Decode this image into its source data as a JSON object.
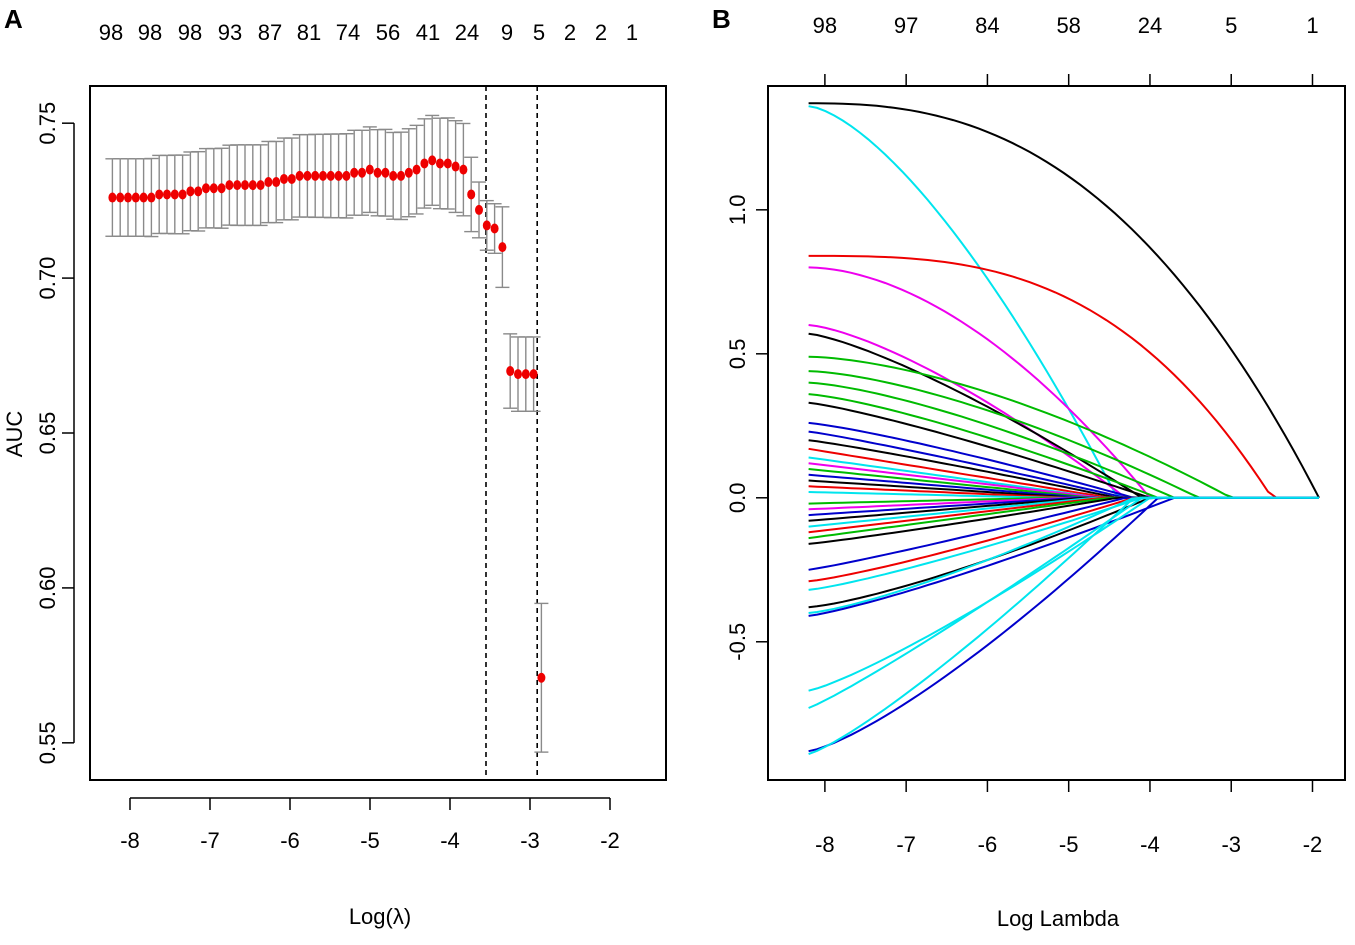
{
  "chart_data": [
    {
      "panel": "A",
      "type": "scatter",
      "title": "",
      "xlabel": "Log(λ)",
      "ylabel": "AUC",
      "xlim": [
        -8.5,
        -1.3
      ],
      "ylim": [
        0.538,
        0.762
      ],
      "x_ticks": [
        -8,
        -7,
        -6,
        -5,
        -4,
        -3,
        -2
      ],
      "x_tick_labels": [
        "-8",
        "-7",
        "-6",
        "-5",
        "-4",
        "-3",
        "-2"
      ],
      "y_ticks": [
        0.55,
        0.6,
        0.65,
        0.7,
        0.75
      ],
      "y_tick_labels": [
        "0.55",
        "0.60",
        "0.65",
        "0.70",
        "0.75"
      ],
      "top_axis_labels": [
        "98",
        "98",
        "98",
        "93",
        "87",
        "81",
        "74",
        "56",
        "41",
        "24",
        "9",
        "5",
        "2",
        "2",
        "1"
      ],
      "vlines": [
        -3.55,
        -2.91
      ],
      "x_start": -8.22,
      "x_step": 0.0975,
      "mean": [
        0.726,
        0.726,
        0.726,
        0.726,
        0.726,
        0.726,
        0.727,
        0.727,
        0.727,
        0.727,
        0.728,
        0.728,
        0.729,
        0.729,
        0.729,
        0.73,
        0.73,
        0.73,
        0.73,
        0.73,
        0.731,
        0.731,
        0.732,
        0.732,
        0.733,
        0.733,
        0.733,
        0.733,
        0.733,
        0.733,
        0.733,
        0.734,
        0.734,
        0.735,
        0.734,
        0.734,
        0.733,
        0.733,
        0.734,
        0.735,
        0.737,
        0.738,
        0.737,
        0.737,
        0.736,
        0.735,
        0.727,
        0.722,
        0.717,
        0.716,
        0.71,
        0.67,
        0.669,
        0.669,
        0.669,
        0.571
      ],
      "se": [
        0.0125,
        0.0125,
        0.0125,
        0.0125,
        0.0125,
        0.0126,
        0.0126,
        0.0126,
        0.0127,
        0.0127,
        0.0127,
        0.0128,
        0.0128,
        0.0128,
        0.0129,
        0.0129,
        0.013,
        0.013,
        0.013,
        0.013,
        0.0131,
        0.0131,
        0.0132,
        0.0132,
        0.0133,
        0.0133,
        0.0134,
        0.0134,
        0.0135,
        0.0135,
        0.0136,
        0.0137,
        0.0137,
        0.0138,
        0.0139,
        0.014,
        0.014,
        0.0141,
        0.0142,
        0.0143,
        0.0144,
        0.0145,
        0.0146,
        0.0147,
        0.0148,
        0.0149,
        0.012,
        0.009,
        0.008,
        0.008,
        0.013,
        0.012,
        0.012,
        0.012,
        0.012,
        0.024
      ]
    },
    {
      "panel": "B",
      "type": "line",
      "title": "",
      "xlabel": "Log Lambda",
      "ylabel": "",
      "xlim": [
        -8.7,
        -1.6
      ],
      "ylim": [
        -0.98,
        1.43
      ],
      "x_ticks": [
        -8,
        -7,
        -6,
        -5,
        -4,
        -3,
        -2
      ],
      "x_tick_labels": [
        "-8",
        "-7",
        "-6",
        "-5",
        "-4",
        "-3",
        "-2"
      ],
      "y_ticks": [
        -0.5,
        0.0,
        0.5,
        1.0
      ],
      "y_tick_labels": [
        "-0.5",
        "0.0",
        "0.5",
        "1.0"
      ],
      "top_ticks": [
        -8,
        -7,
        -6,
        -5,
        -4,
        -3,
        -2
      ],
      "top_axis_labels": [
        "98",
        "97",
        "84",
        "58",
        "24",
        "5",
        "1"
      ],
      "x_range": [
        -8.2,
        -1.92
      ],
      "series": [
        {
          "name": "coef-1",
          "color": "#000000",
          "start": 1.37,
          "end": -1.92,
          "shape": 2.5
        },
        {
          "name": "coef-2",
          "color": "#00e5ee",
          "start": 1.36,
          "end": -4.4,
          "shape": 1.5
        },
        {
          "name": "coef-3",
          "color": "#ee0000",
          "start": 0.84,
          "end": -2.5,
          "shape": 3.0
        },
        {
          "name": "coef-4",
          "color": "#ee00ee",
          "start": 0.8,
          "end": -4.0,
          "shape": 1.8
        },
        {
          "name": "coef-5",
          "color": "#ee00ee",
          "start": 0.6,
          "end": -4.3,
          "shape": 1.4
        },
        {
          "name": "coef-6",
          "color": "#000000",
          "start": 0.57,
          "end": -4.1,
          "shape": 1.3
        },
        {
          "name": "coef-7",
          "color": "#00bb00",
          "start": 0.49,
          "end": -3.0,
          "shape": 1.6
        },
        {
          "name": "coef-8",
          "color": "#00bb00",
          "start": 0.44,
          "end": -3.4,
          "shape": 1.5
        },
        {
          "name": "coef-9",
          "color": "#00bb00",
          "start": 0.4,
          "end": -3.7,
          "shape": 1.4
        },
        {
          "name": "coef-10",
          "color": "#00bb00",
          "start": 0.36,
          "end": -3.9,
          "shape": 1.3
        },
        {
          "name": "coef-11",
          "color": "#000000",
          "start": 0.33,
          "end": -4.0,
          "shape": 1.2
        },
        {
          "name": "coef-12",
          "color": "#0000cc",
          "start": 0.26,
          "end": -4.2,
          "shape": 1.2
        },
        {
          "name": "coef-13",
          "color": "#0000cc",
          "start": 0.23,
          "end": -4.3,
          "shape": 1.1
        },
        {
          "name": "coef-14",
          "color": "#000000",
          "start": 0.2,
          "end": -4.4,
          "shape": 1.1
        },
        {
          "name": "coef-15",
          "color": "#ee0000",
          "start": 0.17,
          "end": -4.5,
          "shape": 1.0
        },
        {
          "name": "coef-16",
          "color": "#00e5ee",
          "start": 0.14,
          "end": -4.6,
          "shape": 1.0
        },
        {
          "name": "coef-17",
          "color": "#ee00ee",
          "start": 0.12,
          "end": -4.6,
          "shape": 1.0
        },
        {
          "name": "coef-18",
          "color": "#00bb00",
          "start": 0.1,
          "end": -4.7,
          "shape": 1.0
        },
        {
          "name": "coef-19",
          "color": "#0000cc",
          "start": 0.08,
          "end": -4.8,
          "shape": 1.0
        },
        {
          "name": "coef-20",
          "color": "#000000",
          "start": 0.06,
          "end": -4.9,
          "shape": 1.0
        },
        {
          "name": "coef-21",
          "color": "#ee0000",
          "start": 0.04,
          "end": -5.0,
          "shape": 1.0
        },
        {
          "name": "coef-22",
          "color": "#00e5ee",
          "start": 0.02,
          "end": -5.2,
          "shape": 1.0
        },
        {
          "name": "coef-23",
          "color": "#00bb00",
          "start": -0.02,
          "end": -5.2,
          "shape": 1.0
        },
        {
          "name": "coef-24",
          "color": "#ee00ee",
          "start": -0.04,
          "end": -5.0,
          "shape": 1.0
        },
        {
          "name": "coef-25",
          "color": "#0000cc",
          "start": -0.06,
          "end": -4.9,
          "shape": 1.0
        },
        {
          "name": "coef-26",
          "color": "#000000",
          "start": -0.08,
          "end": -4.8,
          "shape": 1.0
        },
        {
          "name": "coef-27",
          "color": "#00e5ee",
          "start": -0.1,
          "end": -4.7,
          "shape": 1.0
        },
        {
          "name": "coef-28",
          "color": "#ee0000",
          "start": -0.12,
          "end": -4.6,
          "shape": 1.0
        },
        {
          "name": "coef-29",
          "color": "#00bb00",
          "start": -0.14,
          "end": -4.5,
          "shape": 1.0
        },
        {
          "name": "coef-30",
          "color": "#000000",
          "start": -0.16,
          "end": -4.4,
          "shape": 1.1
        },
        {
          "name": "coef-31",
          "color": "#0000cc",
          "start": -0.25,
          "end": -4.3,
          "shape": 1.1
        },
        {
          "name": "coef-32",
          "color": "#ee0000",
          "start": -0.29,
          "end": -4.2,
          "shape": 1.2
        },
        {
          "name": "coef-33",
          "color": "#00e5ee",
          "start": -0.32,
          "end": -4.1,
          "shape": 1.2
        },
        {
          "name": "coef-34",
          "color": "#000000",
          "start": -0.38,
          "end": -4.0,
          "shape": 1.3
        },
        {
          "name": "coef-35",
          "color": "#00e5ee",
          "start": -0.4,
          "end": -4.2,
          "shape": 1.3
        },
        {
          "name": "coef-36",
          "color": "#0000cc",
          "start": -0.41,
          "end": -3.7,
          "shape": 1.2
        },
        {
          "name": "coef-37",
          "color": "#00e5ee",
          "start": -0.67,
          "end": -4.0,
          "shape": 1.2
        },
        {
          "name": "coef-38",
          "color": "#00e5ee",
          "start": -0.73,
          "end": -4.1,
          "shape": 1.1
        },
        {
          "name": "coef-39",
          "color": "#0000cc",
          "start": -0.88,
          "end": -3.9,
          "shape": 1.3
        },
        {
          "name": "coef-40",
          "color": "#00e5ee",
          "start": -0.89,
          "end": -4.2,
          "shape": 1.2
        }
      ]
    }
  ],
  "panels": {
    "a": {
      "letter": "A"
    },
    "b": {
      "letter": "B"
    }
  }
}
